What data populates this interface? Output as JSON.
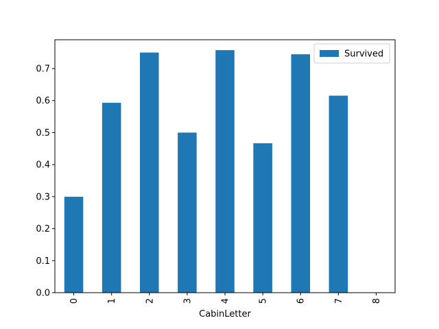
{
  "chart_data": {
    "type": "bar",
    "categories": [
      "0",
      "1",
      "2",
      "3",
      "4",
      "5",
      "6",
      "7",
      "8"
    ],
    "series": [
      {
        "name": "Survived",
        "values": [
          0.2996,
          0.5932,
          0.75,
          0.5,
          0.7576,
          0.4667,
          0.7447,
          0.6154,
          0.0
        ],
        "color": "#1f77b4"
      }
    ],
    "xlabel": "CabinLetter",
    "ylabel": "",
    "ylim": [
      0,
      0.79
    ],
    "yticks": [
      0.0,
      0.1,
      0.2,
      0.3,
      0.4,
      0.5,
      0.6,
      0.7
    ],
    "legend_position": "top-right",
    "grid": false
  }
}
